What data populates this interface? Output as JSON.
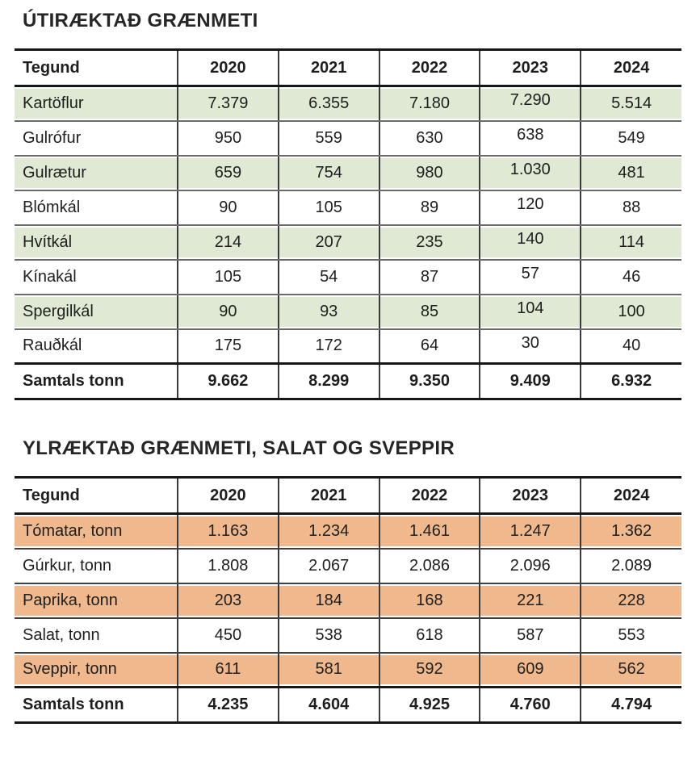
{
  "tables": [
    {
      "title": "ÚTIRÆKTAÐ GRÆNMETI",
      "highlight_color": "#dfe9d3",
      "columns": [
        "Tegund",
        "2020",
        "2021",
        "2022",
        "2023",
        "2024"
      ],
      "rows": [
        {
          "label": "Kartöflur",
          "values": [
            "7.379",
            "6.355",
            "7.180",
            "7.290",
            "5.514"
          ]
        },
        {
          "label": "Gulrófur",
          "values": [
            "950",
            "559",
            "630",
            "638",
            "549"
          ]
        },
        {
          "label": "Gulrætur",
          "values": [
            "659",
            "754",
            "980",
            "1.030",
            "481"
          ]
        },
        {
          "label": "Blómkál",
          "values": [
            "90",
            "105",
            "89",
            "120",
            "88"
          ]
        },
        {
          "label": "Hvítkál",
          "values": [
            "214",
            "207",
            "235",
            "140",
            "114"
          ]
        },
        {
          "label": "Kínakál",
          "values": [
            "105",
            "54",
            "87",
            "57",
            "46"
          ]
        },
        {
          "label": "Spergilkál",
          "values": [
            "90",
            "93",
            "85",
            "104",
            "100"
          ]
        },
        {
          "label": "Rauðkál",
          "values": [
            "175",
            "172",
            "64",
            "30",
            "40"
          ]
        }
      ],
      "total": {
        "label": "Samtals tonn",
        "values": [
          "9.662",
          "8.299",
          "9.350",
          "9.409",
          "6.932"
        ]
      }
    },
    {
      "title": "YLRÆKTAÐ GRÆNMETI, SALAT OG SVEPPIR",
      "highlight_color": "#efb98d",
      "columns": [
        "Tegund",
        "2020",
        "2021",
        "2022",
        "2023",
        "2024"
      ],
      "rows": [
        {
          "label": "Tómatar, tonn",
          "values": [
            "1.163",
            "1.234",
            "1.461",
            "1.247",
            "1.362"
          ]
        },
        {
          "label": "Gúrkur, tonn",
          "values": [
            "1.808",
            "2.067",
            "2.086",
            "2.096",
            "2.089"
          ]
        },
        {
          "label": "Paprika, tonn",
          "values": [
            "203",
            "184",
            "168",
            "221",
            "228"
          ]
        },
        {
          "label": "Salat, tonn",
          "values": [
            "450",
            "538",
            "618",
            "587",
            "553"
          ]
        },
        {
          "label": "Sveppir, tonn",
          "values": [
            "611",
            "581",
            "592",
            "609",
            "562"
          ]
        }
      ],
      "total": {
        "label": "Samtals tonn",
        "values": [
          "4.235",
          "4.604",
          "4.925",
          "4.760",
          "4.794"
        ]
      }
    }
  ]
}
